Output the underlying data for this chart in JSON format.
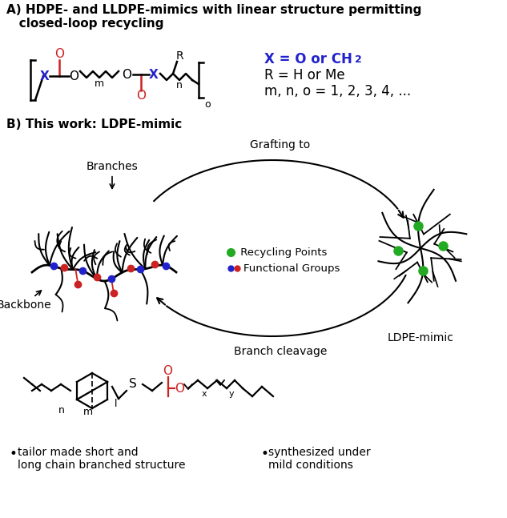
{
  "title_A": "A) HDPE- and LLDPE-mimics with linear structure permitting\n   closed-loop recycling",
  "title_B": "B) This work: LDPE-mimic",
  "label_branches": "Branches",
  "label_backbone": "Backbone",
  "label_grafting": "Grafting to",
  "label_cleavage": "Branch cleavage",
  "label_ldpe": "LDPE-mimic",
  "legend_green": "Recycling Points",
  "legend_blue": "Functional Groups",
  "bullet1": " tailor made short and\n  long chain branched structure",
  "bullet2": " synthesized under\n  mild conditions",
  "bg_color": "#ffffff",
  "text_color": "#000000",
  "blue_color": "#2222cc",
  "red_color": "#cc2222",
  "green_color": "#22aa22",
  "figsize": [
    6.33,
    6.47
  ],
  "dpi": 100
}
